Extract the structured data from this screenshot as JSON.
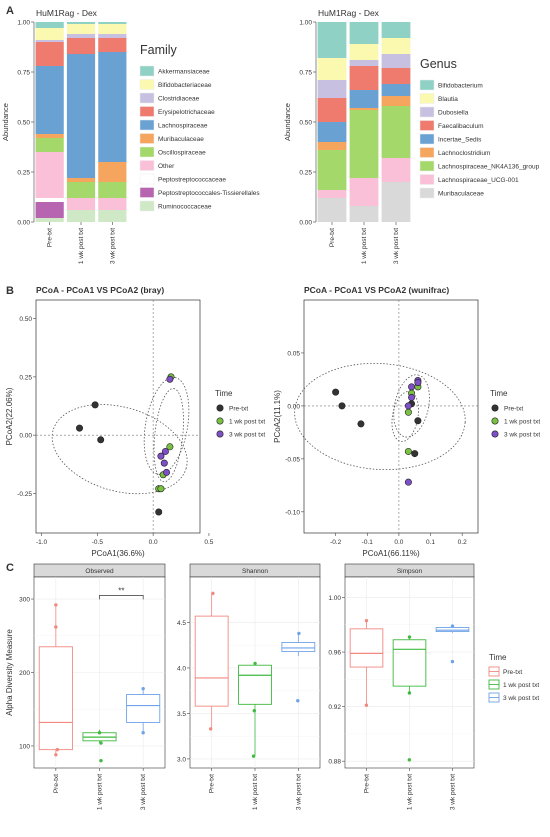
{
  "panel_labels": [
    "A",
    "B",
    "C"
  ],
  "chart_data": [
    {
      "type": "bar",
      "stacked": true,
      "title": "HuM1Rag - Dex",
      "ylabel": "Abundance",
      "xlabel": "",
      "ylim": [
        0,
        1
      ],
      "yticks": [
        "0.00",
        "0.25",
        "0.50",
        "0.75",
        "1.00"
      ],
      "categories": [
        "Pre-txt",
        "1 wk post txt",
        "3 wk post txt"
      ],
      "legend_title": "Family",
      "legend_position": "right",
      "series": [
        {
          "name": "Ruminococcaceae",
          "color": "#cfe8c6",
          "values": [
            0.02,
            0.06,
            0.06
          ]
        },
        {
          "name": "Peptostreptococcales-Tissierellales",
          "color": "#b765b1",
          "values": [
            0.08,
            0.0,
            0.0
          ]
        },
        {
          "name": "Peptostreptococcaceae",
          "color": "#ffffff",
          "values": [
            0.02,
            0.0,
            0.0
          ]
        },
        {
          "name": "Other",
          "color": "#f9c0d8",
          "values": [
            0.23,
            0.06,
            0.06
          ]
        },
        {
          "name": "Oscillospiraceae",
          "color": "#a5d86a",
          "values": [
            0.07,
            0.08,
            0.08
          ]
        },
        {
          "name": "Muribaculaceae",
          "color": "#f6a55e",
          "values": [
            0.02,
            0.02,
            0.1
          ]
        },
        {
          "name": "Lachnospiraceae",
          "color": "#6aa1d3",
          "values": [
            0.34,
            0.62,
            0.55
          ]
        },
        {
          "name": "Erysipelotrichaceae",
          "color": "#ef7a6e",
          "values": [
            0.12,
            0.08,
            0.07
          ]
        },
        {
          "name": "Clostridiaceae",
          "color": "#c7c0e0",
          "values": [
            0.01,
            0.02,
            0.02
          ]
        },
        {
          "name": "Bifidobacteriaceae",
          "color": "#fbf8b0",
          "values": [
            0.06,
            0.05,
            0.05
          ]
        },
        {
          "name": "Akkermansiaceae",
          "color": "#8fd1c5",
          "values": [
            0.03,
            0.01,
            0.01
          ]
        }
      ],
      "legend_order": [
        "Akkermansiaceae",
        "Bifidobacteriaceae",
        "Clostridiaceae",
        "Erysipelotrichaceae",
        "Lachnospiraceae",
        "Muribaculaceae",
        "Oscillospiraceae",
        "Other",
        "Peptostreptococcaceae",
        "Peptostreptococcales-Tissierellales",
        "Ruminococcaceae"
      ]
    },
    {
      "type": "bar",
      "stacked": true,
      "title": "HuM1Rag - Dex",
      "ylabel": "Abundance",
      "xlabel": "",
      "ylim": [
        0,
        1
      ],
      "yticks": [
        "0.00",
        "0.25",
        "0.50",
        "0.75",
        "1.00"
      ],
      "categories": [
        "Pre-txt",
        "1 wk post txt",
        "3 wk post txt"
      ],
      "legend_title": "Genus",
      "legend_position": "right",
      "series": [
        {
          "name": "Muribaculaceae",
          "color": "#d9d9d9",
          "values": [
            0.12,
            0.08,
            0.2
          ]
        },
        {
          "name": "Lachnospiraceae_UCG-001",
          "color": "#f9c0d8",
          "values": [
            0.04,
            0.14,
            0.12
          ]
        },
        {
          "name": "Lachnospiraceae_NK4A136_group",
          "color": "#a5d86a",
          "values": [
            0.2,
            0.34,
            0.26
          ]
        },
        {
          "name": "Lachnoclostridium",
          "color": "#f6a55e",
          "values": [
            0.04,
            0.01,
            0.05
          ]
        },
        {
          "name": "Incertae_Sedis",
          "color": "#6aa1d3",
          "values": [
            0.1,
            0.09,
            0.06
          ]
        },
        {
          "name": "Faecalibaculum",
          "color": "#ef7a6e",
          "values": [
            0.12,
            0.12,
            0.08
          ]
        },
        {
          "name": "Dubosiella",
          "color": "#c7c0e0",
          "values": [
            0.09,
            0.03,
            0.07
          ]
        },
        {
          "name": "Blautia",
          "color": "#fbf8b0",
          "values": [
            0.11,
            0.08,
            0.08
          ]
        },
        {
          "name": "Bifidobacterium",
          "color": "#8fd1c5",
          "values": [
            0.18,
            0.11,
            0.08
          ]
        }
      ],
      "legend_order": [
        "Bifidobacterium",
        "Blautia",
        "Dubosiella",
        "Faecalibaculum",
        "Incertae_Sedis",
        "Lachnoclostridium",
        "Lachnospiraceae_NK4A136_group",
        "Lachnospiraceae_UCG-001",
        "Muribaculaceae"
      ]
    },
    {
      "type": "scatter",
      "title": "PCoA - PCoA1 VS PCoA2 (bray)",
      "xlabel": "PCoA1(36.6%)",
      "ylabel": "PCoA2(22.06%)",
      "xlim": [
        -1.05,
        0.42
      ],
      "ylim": [
        -0.42,
        0.58
      ],
      "xticks": [
        -1.0,
        -0.5,
        0.0,
        0.5
      ],
      "yticks": [
        -0.25,
        0.0,
        0.25,
        0.5
      ],
      "ytick_labels": [
        "-0.25",
        "0.00",
        "0.25",
        "0.50"
      ],
      "xtick_labels": [
        "-1.0",
        "-0.5",
        "0.0",
        "0.5"
      ],
      "legend_title": "Time",
      "legend_position": "right",
      "grid": false,
      "series": [
        {
          "name": "Pre-txt",
          "color": "#333333",
          "points": [
            [
              -0.52,
              0.13
            ],
            [
              -0.66,
              0.03
            ],
            [
              -0.47,
              -0.02
            ],
            [
              0.05,
              -0.33
            ]
          ]
        },
        {
          "name": "1 wk post txt",
          "color": "#7ac143",
          "points": [
            [
              0.16,
              0.25
            ],
            [
              0.15,
              -0.05
            ],
            [
              0.05,
              -0.23
            ],
            [
              0.09,
              -0.17
            ],
            [
              0.07,
              -0.23
            ]
          ]
        },
        {
          "name": "3 wk post txt",
          "color": "#7e4fc6",
          "points": [
            [
              0.15,
              0.24
            ],
            [
              0.11,
              -0.07
            ],
            [
              0.07,
              -0.09
            ],
            [
              0.12,
              -0.16
            ],
            [
              0.1,
              -0.12
            ]
          ]
        }
      ],
      "ellipses": [
        {
          "cx": -0.3,
          "cy": -0.06,
          "rx": 0.62,
          "ry": 0.18,
          "angle": 16
        },
        {
          "cx": 0.14,
          "cy": 0.0,
          "rx": 0.42,
          "ry": 0.06,
          "angle": -84
        },
        {
          "cx": 0.12,
          "cy": 0.04,
          "rx": 0.44,
          "ry": 0.09,
          "angle": -80
        }
      ]
    },
    {
      "type": "scatter",
      "title": "PCoA - PCoA1 VS PCoA2 (wunifrac)",
      "xlabel": "PCoA1(66.11%)",
      "ylabel": "PCoA2(11.1%)",
      "xlim": [
        -0.3,
        0.25
      ],
      "ylim": [
        -0.12,
        0.1
      ],
      "xticks": [
        -0.2,
        -0.1,
        0.0,
        0.1,
        0.2
      ],
      "yticks": [
        -0.1,
        -0.05,
        0.0,
        0.05
      ],
      "ytick_labels": [
        "-0.10",
        "-0.05",
        "0.00",
        "0.05"
      ],
      "xtick_labels": [
        "-0.2",
        "-0.1",
        "0.0",
        "0.1",
        "0.2"
      ],
      "legend_title": "Time",
      "legend_position": "right",
      "grid": false,
      "series": [
        {
          "name": "Pre-txt",
          "color": "#333333",
          "points": [
            [
              -0.2,
              0.013
            ],
            [
              -0.18,
              0.0
            ],
            [
              -0.12,
              -0.017
            ],
            [
              0.06,
              -0.014
            ],
            [
              0.05,
              -0.045
            ],
            [
              0.04,
              0.002
            ]
          ]
        },
        {
          "name": "1 wk post txt",
          "color": "#7ac143",
          "points": [
            [
              0.06,
              0.018
            ],
            [
              0.03,
              -0.043
            ],
            [
              0.03,
              -0.006
            ],
            [
              0.04,
              0.012
            ]
          ]
        },
        {
          "name": "3 wk post txt",
          "color": "#7e4fc6",
          "points": [
            [
              0.06,
              0.024
            ],
            [
              0.04,
              0.008
            ],
            [
              0.04,
              0.018
            ],
            [
              0.06,
              0.022
            ],
            [
              0.03,
              0.0
            ],
            [
              0.03,
              -0.072
            ]
          ]
        }
      ],
      "ellipses": [
        {
          "cx": -0.06,
          "cy": -0.01,
          "rx": 0.27,
          "ry": 0.05,
          "angle": 4
        },
        {
          "cx": 0.02,
          "cy": -0.01,
          "rx": 0.08,
          "ry": 0.012,
          "angle": -80
        },
        {
          "cx": 0.04,
          "cy": 0.0,
          "rx": 0.1,
          "ry": 0.016,
          "angle": -78
        }
      ]
    },
    {
      "type": "box",
      "ylabel": "Alpha Diversity Measure",
      "categories": [
        "Pre-txt",
        "1 wk post txt",
        "3 wk post txt"
      ],
      "legend_title": "Time",
      "legend_position": "right",
      "series_colors": [
        "#f28880",
        "#3fb93f",
        "#6fa3e8"
      ],
      "grid": true,
      "facets": [
        {
          "name": "Observed",
          "ylim": [
            70,
            330
          ],
          "yticks": [
            100,
            200,
            300
          ],
          "ytick_labels": [
            "100",
            "200",
            "300"
          ],
          "significance": {
            "label": "**",
            "from": 1,
            "to": 2,
            "y": 305
          },
          "boxes": [
            {
              "min": 88,
              "q1": 95,
              "median": 132,
              "q3": 235,
              "max": 292,
              "points": [
                88,
                95,
                262,
                292
              ]
            },
            {
              "min": 104,
              "q1": 107,
              "median": 112,
              "q3": 118,
              "max": 122,
              "points": [
                80,
                104,
                118
              ]
            },
            {
              "min": 118,
              "q1": 132,
              "median": 155,
              "q3": 170,
              "max": 178,
              "points": [
                118,
                178
              ]
            }
          ]
        },
        {
          "name": "Shannon",
          "ylim": [
            2.9,
            5.0
          ],
          "yticks": [
            3.0,
            3.5,
            4.0,
            4.5
          ],
          "ytick_labels": [
            "3.0",
            "3.5",
            "4.0",
            "4.5"
          ],
          "boxes": [
            {
              "min": 3.33,
              "q1": 3.58,
              "median": 3.89,
              "q3": 4.57,
              "max": 4.82,
              "points": [
                3.33,
                4.82
              ]
            },
            {
              "min": 3.03,
              "q1": 3.6,
              "median": 3.92,
              "q3": 4.03,
              "max": 4.05,
              "points": [
                3.03,
                3.53,
                4.05
              ]
            },
            {
              "min": 4.13,
              "q1": 4.18,
              "median": 4.22,
              "q3": 4.28,
              "max": 4.38,
              "points": [
                3.64,
                4.38
              ]
            }
          ]
        },
        {
          "name": "Simpson",
          "ylim": [
            0.875,
            1.015
          ],
          "yticks": [
            0.88,
            0.92,
            0.96,
            1.0
          ],
          "ytick_labels": [
            "0.88",
            "0.92",
            "0.96",
            "1.00"
          ],
          "boxes": [
            {
              "min": 0.921,
              "q1": 0.949,
              "median": 0.959,
              "q3": 0.977,
              "max": 0.983,
              "points": [
                0.921,
                0.983
              ]
            },
            {
              "min": 0.93,
              "q1": 0.935,
              "median": 0.962,
              "q3": 0.969,
              "max": 0.971,
              "points": [
                0.881,
                0.93,
                0.971
              ]
            },
            {
              "min": 0.974,
              "q1": 0.975,
              "median": 0.976,
              "q3": 0.978,
              "max": 0.979,
              "points": [
                0.953,
                0.979
              ]
            }
          ]
        }
      ]
    }
  ]
}
